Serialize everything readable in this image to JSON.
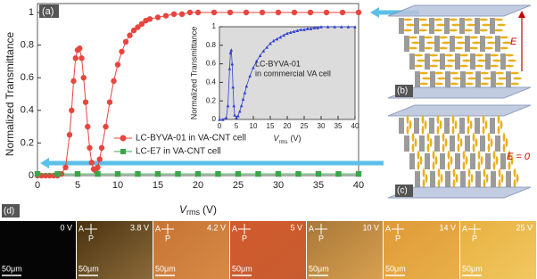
{
  "chart_data": [
    {
      "type": "line",
      "ylabel": "Normalized Transmittance",
      "xlabel": [
        "V",
        "rms",
        "(V)"
      ],
      "xlim": [
        0,
        40
      ],
      "xticks": [
        0,
        5,
        10,
        15,
        20,
        25,
        30,
        35,
        40
      ],
      "ylim": [
        0,
        1
      ],
      "yticks": [
        0,
        0.2,
        0.4,
        0.6,
        0.8,
        1
      ],
      "grid": false,
      "legend": "center-left",
      "series": [
        {
          "name": "LC-BYVA-01 in VA-CNT cell",
          "color": "#e8453f",
          "marker": "circle",
          "x": [
            0,
            0.5,
            1,
            1.5,
            2,
            2.5,
            3,
            3.5,
            4,
            4.25,
            4.5,
            4.75,
            5,
            5.25,
            5.5,
            5.75,
            6,
            6.25,
            6.5,
            6.75,
            7,
            7.25,
            7.5,
            7.75,
            8,
            8.5,
            9,
            9.5,
            10,
            10.5,
            11,
            11.5,
            12,
            12.5,
            13,
            13.5,
            14,
            15,
            16,
            17,
            18,
            19,
            20,
            22,
            24,
            26,
            28,
            30,
            32,
            34,
            36,
            38,
            40
          ],
          "values": [
            0,
            0,
            0,
            0,
            0,
            0,
            0.01,
            0.05,
            0.25,
            0.4,
            0.58,
            0.72,
            0.77,
            0.78,
            0.72,
            0.6,
            0.45,
            0.3,
            0.17,
            0.08,
            0.04,
            0.03,
            0.05,
            0.1,
            0.17,
            0.3,
            0.45,
            0.58,
            0.68,
            0.76,
            0.82,
            0.86,
            0.89,
            0.91,
            0.93,
            0.95,
            0.96,
            0.97,
            0.98,
            0.99,
            0.99,
            1,
            1,
            1,
            1,
            1,
            1,
            1,
            1,
            1,
            1,
            1,
            1
          ]
        },
        {
          "name": "LC-E7 in VA-CNT cell",
          "color": "#3aa64a",
          "marker": "square",
          "x": [
            0,
            2.5,
            5,
            7.5,
            10,
            12.5,
            15,
            17.5,
            20,
            22.5,
            25,
            27.5,
            30,
            32.5,
            35,
            37.5,
            40
          ],
          "values": [
            0.01,
            0.01,
            0.01,
            0.01,
            0.01,
            0.01,
            0.01,
            0.01,
            0.01,
            0.01,
            0.01,
            0.01,
            0.01,
            0.01,
            0.01,
            0.01,
            0.01
          ]
        }
      ]
    },
    {
      "type": "line",
      "ylabel": "Normalized Transmittance",
      "xlabel": [
        "V",
        "rms",
        "(V)"
      ],
      "annotation": [
        "LC-BYVA-01",
        "in commercial VA cell"
      ],
      "xlim": [
        0,
        40
      ],
      "xticks": [
        0,
        5,
        10,
        15,
        20,
        25,
        30,
        35,
        40
      ],
      "ylim": [
        0,
        1
      ],
      "yticks": [
        0,
        0.2,
        0.4,
        0.6,
        0.8,
        1
      ],
      "grid": false,
      "background": "#dcdcdc",
      "series": [
        {
          "color": "#3340d0",
          "marker": "triangle",
          "x": [
            0,
            1,
            2,
            2.5,
            3,
            3.25,
            3.5,
            3.75,
            4,
            4.25,
            4.5,
            5,
            5.5,
            6,
            6.5,
            7,
            7.5,
            8,
            9,
            10,
            11,
            12,
            13,
            14,
            15,
            16,
            17,
            18,
            19,
            20,
            21,
            22,
            23,
            24,
            25,
            26,
            27,
            28,
            29,
            30,
            32,
            34,
            36,
            38,
            40
          ],
          "values": [
            0,
            0,
            0.02,
            0.15,
            0.55,
            0.72,
            0.75,
            0.6,
            0.35,
            0.15,
            0.05,
            0.02,
            0.04,
            0.09,
            0.15,
            0.22,
            0.29,
            0.36,
            0.47,
            0.56,
            0.63,
            0.69,
            0.74,
            0.78,
            0.82,
            0.85,
            0.87,
            0.89,
            0.91,
            0.93,
            0.94,
            0.95,
            0.96,
            0.97,
            0.97,
            0.98,
            0.98,
            0.99,
            0.99,
            1,
            1,
            1,
            1,
            1,
            1
          ]
        }
      ]
    }
  ],
  "panels": {
    "a": "(a)",
    "b": "(b)",
    "c": "(c)",
    "d": "(d)"
  },
  "field_on": "E",
  "field_off": "E = 0",
  "micrographs": [
    "0 V",
    "3.8 V",
    "4.2 V",
    "5 V",
    "10 V",
    "14 V",
    "25 V"
  ],
  "analyzer": "A",
  "polarizer": "P",
  "scale_bar": "50μm"
}
